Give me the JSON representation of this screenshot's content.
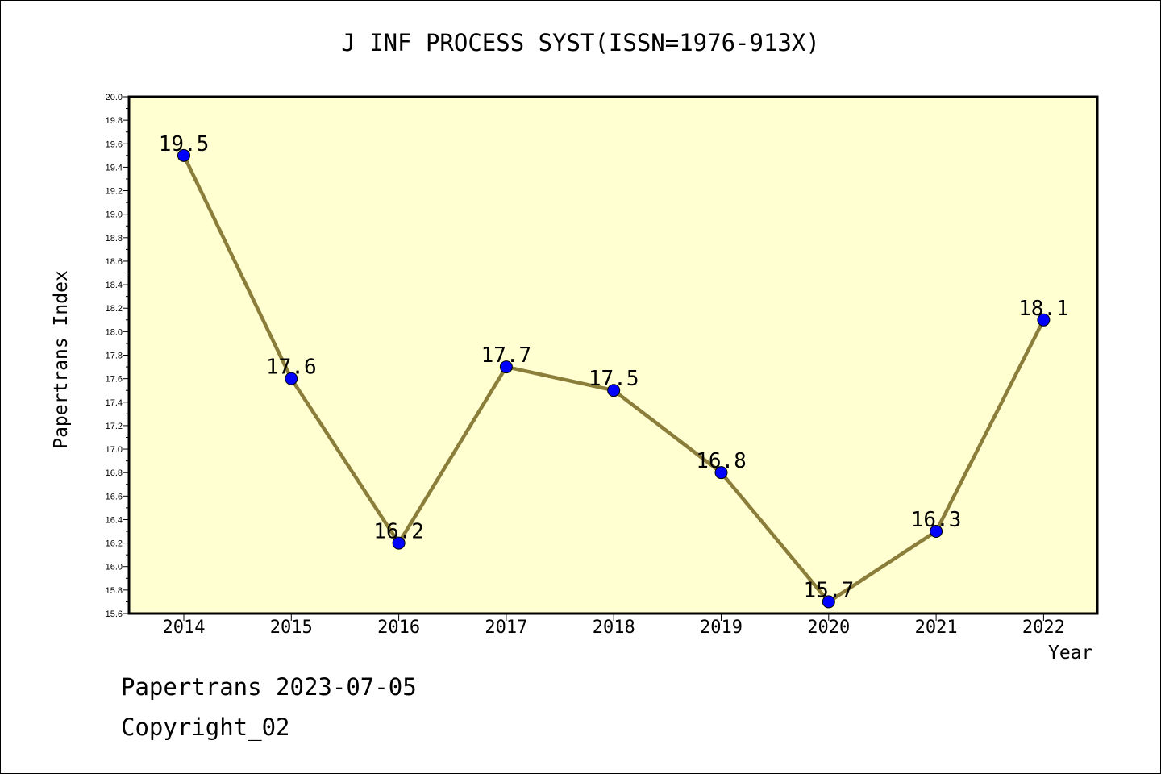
{
  "chart_data": {
    "type": "line",
    "title": "J INF PROCESS SYST(ISSN=1976-913X)",
    "xlabel": "Year",
    "ylabel": "Papertrans Index",
    "categories": [
      "2014",
      "2015",
      "2016",
      "2017",
      "2018",
      "2019",
      "2020",
      "2021",
      "2022"
    ],
    "series": [
      {
        "values": [
          19.5,
          17.6,
          16.2,
          17.7,
          17.5,
          16.8,
          15.7,
          16.3,
          18.1
        ],
        "data_labels": [
          "19.5",
          "17.6",
          "16.2",
          "17.7",
          "17.5",
          "16.8",
          "15.7",
          "16.3",
          "18.1"
        ]
      }
    ],
    "ylim": [
      15.6,
      20.0
    ],
    "yticks": [
      "15.6",
      "15.8",
      "16.0",
      "16.2",
      "16.4",
      "16.6",
      "16.8",
      "17.0",
      "17.2",
      "17.4",
      "17.6",
      "17.8",
      "18.0",
      "18.2",
      "18.4",
      "18.6",
      "18.8",
      "19.0",
      "19.2",
      "19.4",
      "19.6",
      "19.8",
      "20.0"
    ],
    "grid": false,
    "legend": "none",
    "colors": {
      "plot_background": "#ffffd1",
      "line": "#8b7d3a",
      "marker": "#0000ff"
    }
  },
  "footer": {
    "line1": "Papertrans 2023-07-05",
    "line2": "Copyright_02"
  }
}
